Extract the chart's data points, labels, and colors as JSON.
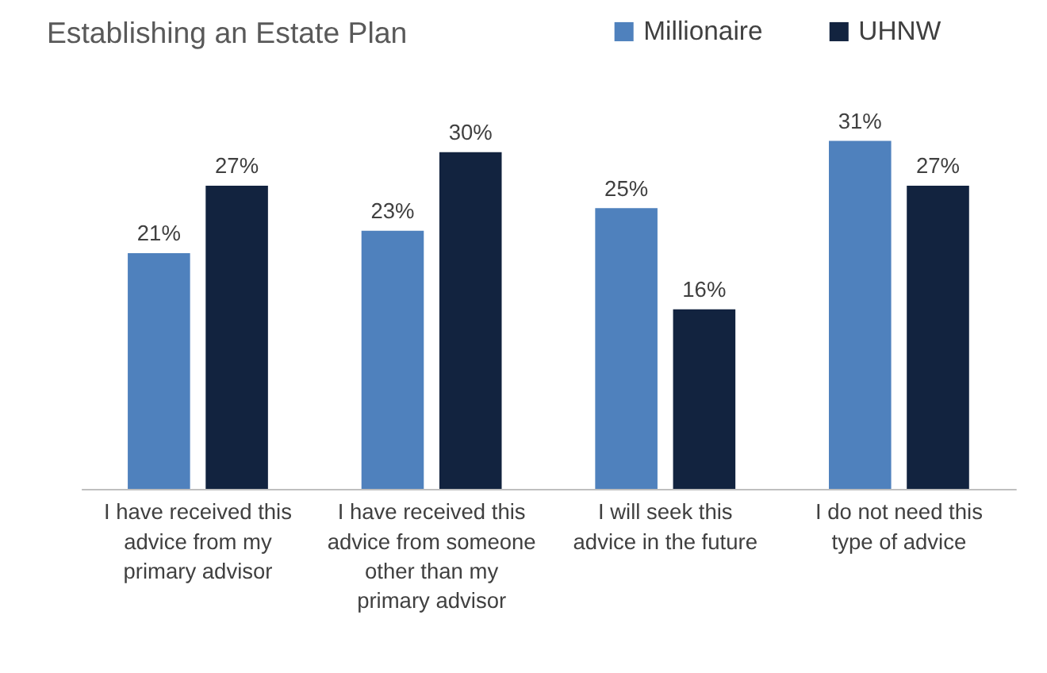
{
  "chart_data": {
    "type": "bar",
    "title": "Establishing an Estate Plan",
    "categories": [
      "I have received this advice from my primary advisor",
      "I have received this advice from someone other than my primary advisor",
      "I will seek this advice in the future",
      "I do not need this type of advice"
    ],
    "series": [
      {
        "name": "Millionaire",
        "color": "#4f81bd",
        "values": [
          21,
          23,
          25,
          31
        ],
        "value_labels": [
          "21%",
          "23%",
          "25%",
          "31%"
        ]
      },
      {
        "name": "UHNW",
        "color": "#12233f",
        "values": [
          27,
          30,
          16,
          27
        ],
        "value_labels": [
          "27%",
          "30%",
          "16%",
          "27%"
        ]
      }
    ],
    "legend": "top right",
    "grid": false
  }
}
